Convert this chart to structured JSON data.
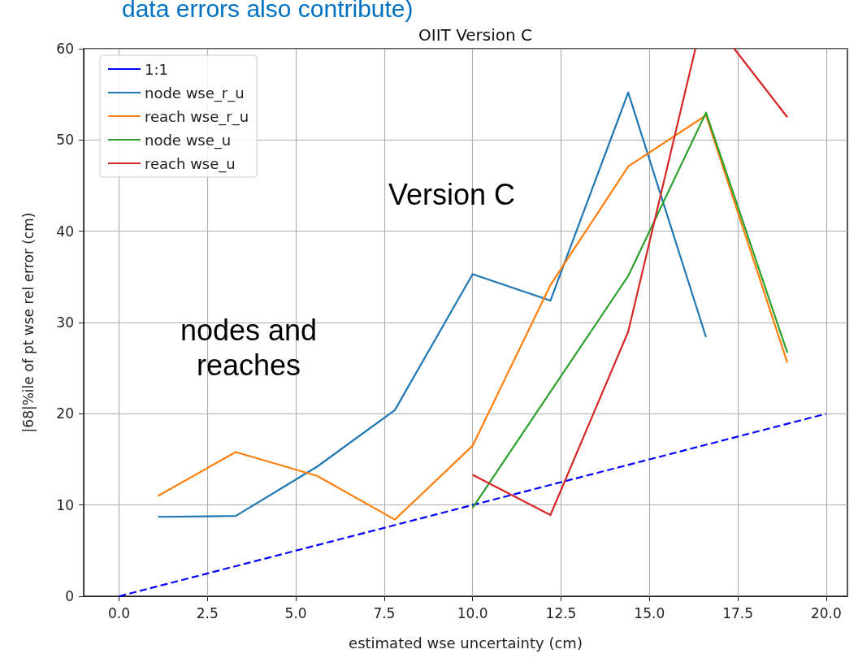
{
  "chart_data": {
    "type": "line",
    "title": "OIIT Version C",
    "xlabel": "estimated wse uncertainty (cm)",
    "ylabel": "|68|%ile of pt wse rel error (cm)",
    "annotations": [
      "data errors also contribute)",
      "Version C",
      "nodes and reaches"
    ],
    "x": [
      1.1,
      3.3,
      5.6,
      7.8,
      10.0,
      12.2,
      14.4,
      16.6,
      18.9
    ],
    "series": [
      {
        "name": "1:1",
        "color": "#0000ff",
        "line_style": "dashed",
        "x": [
          0,
          20
        ],
        "values": [
          0,
          20
        ]
      },
      {
        "name": "node wse_r_u",
        "color": "#1f77b4",
        "values": [
          8.7,
          8.8,
          14.2,
          20.4,
          35.3,
          32.4,
          55.2,
          28.4,
          null
        ]
      },
      {
        "name": "reach wse_r_u",
        "color": "#ff7f0e",
        "values": [
          11.0,
          15.8,
          13.2,
          8.4,
          16.5,
          34.1,
          47.1,
          52.7,
          25.6
        ]
      },
      {
        "name": "node wse_u",
        "color": "#2ca02c",
        "values": [
          null,
          null,
          null,
          null,
          9.7,
          22.4,
          35.1,
          53.0,
          26.7
        ]
      },
      {
        "name": "reach wse_u",
        "color": "#d62728",
        "x": [
          10.0,
          12.2,
          14.4,
          16.3,
          16.6,
          17.4,
          18.9
        ],
        "values": [
          13.3,
          8.9,
          29.0,
          60,
          null,
          60,
          52.5
        ]
      }
    ],
    "xlim": [
      -1,
      20.6
    ],
    "xticks": [
      {
        "value": 0,
        "label": "0.0"
      },
      {
        "value": 2.5,
        "label": "2.5"
      },
      {
        "value": 5,
        "label": "5.0"
      },
      {
        "value": 7.5,
        "label": "7.5"
      },
      {
        "value": 10,
        "label": "10.0"
      },
      {
        "value": 12.5,
        "label": "12.5"
      },
      {
        "value": 15,
        "label": "15.0"
      },
      {
        "value": 17.5,
        "label": "17.5"
      },
      {
        "value": 20,
        "label": "20.0"
      }
    ],
    "ylim": [
      0,
      60
    ],
    "yticks": [
      0,
      10,
      20,
      30,
      40,
      50,
      60
    ],
    "grid": true,
    "legend": "top left",
    "line_style": "solid",
    "marker": "none"
  }
}
